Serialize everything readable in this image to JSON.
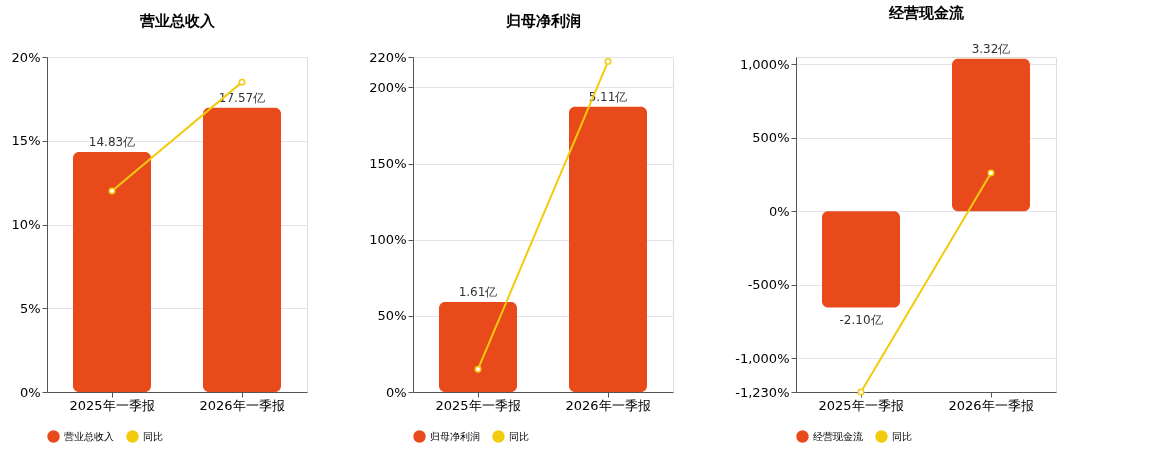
{
  "chart_data": [
    {
      "type": "bar",
      "title": "营业总收入",
      "categories": [
        "2025年一季报",
        "2026年一季报"
      ],
      "legend": "bottom",
      "grid": "y",
      "series": [
        {
          "name": "营业总收入",
          "axis": "y2",
          "color": "#e84a1b",
          "values": [
            14.83,
            17.57
          ],
          "value_labels": [
            "14.83亿",
            "17.57亿"
          ]
        },
        {
          "name": "同比",
          "type": "line",
          "color": "#f2cc0c",
          "marker": "circle",
          "values": [
            12.0,
            18.5
          ]
        }
      ],
      "ylim": [
        0,
        20
      ],
      "yticks": [
        {
          "value": 0,
          "label": "0%"
        },
        {
          "value": 5,
          "label": "5%"
        },
        {
          "value": 10,
          "label": "10%"
        },
        {
          "value": 15,
          "label": "15%"
        },
        {
          "value": 20,
          "label": "20%"
        }
      ],
      "y2lim": [
        0,
        20.7
      ]
    },
    {
      "type": "bar",
      "title": "归母净利润",
      "categories": [
        "2025年一季报",
        "2026年一季报"
      ],
      "legend": "bottom",
      "grid": "y",
      "series": [
        {
          "name": "归母净利润",
          "axis": "y2",
          "color": "#e84a1b",
          "values": [
            1.61,
            5.11
          ],
          "value_labels": [
            "1.61亿",
            "5.11亿"
          ]
        },
        {
          "name": "同比",
          "type": "line",
          "color": "#f2cc0c",
          "marker": "circle",
          "values": [
            15,
            217
          ]
        }
      ],
      "ylim": [
        0,
        220
      ],
      "yticks": [
        {
          "value": 0,
          "label": "0%"
        },
        {
          "value": 50,
          "label": "50%"
        },
        {
          "value": 100,
          "label": "100%"
        },
        {
          "value": 150,
          "label": "150%"
        },
        {
          "value": 200,
          "label": "200%"
        },
        {
          "value": 220,
          "label": "220%"
        }
      ],
      "y2lim": [
        0,
        6.0
      ]
    },
    {
      "type": "bar",
      "title": "经营现金流",
      "categories": [
        "2025年一季报",
        "2026年一季报"
      ],
      "legend": "bottom",
      "grid": "y",
      "series": [
        {
          "name": "经营现金流",
          "axis": "y2",
          "color": "#e84a1b",
          "values": [
            -2.1,
            3.32
          ],
          "value_labels": [
            "-2.10亿",
            "3.32亿"
          ]
        },
        {
          "name": "同比",
          "type": "line",
          "color": "#f2cc0c",
          "marker": "circle",
          "values": [
            -1230,
            260
          ]
        }
      ],
      "ylim": [
        -1230,
        1050
      ],
      "yticks": [
        {
          "value": -1230,
          "label": "-1,230%"
        },
        {
          "value": -1000,
          "label": "-1,000%"
        },
        {
          "value": -500,
          "label": "-500%"
        },
        {
          "value": 0,
          "label": "0%"
        },
        {
          "value": 500,
          "label": "500%"
        },
        {
          "value": 1000,
          "label": "1,000%"
        }
      ],
      "y2lim": [
        -3.94,
        3.36
      ]
    }
  ]
}
